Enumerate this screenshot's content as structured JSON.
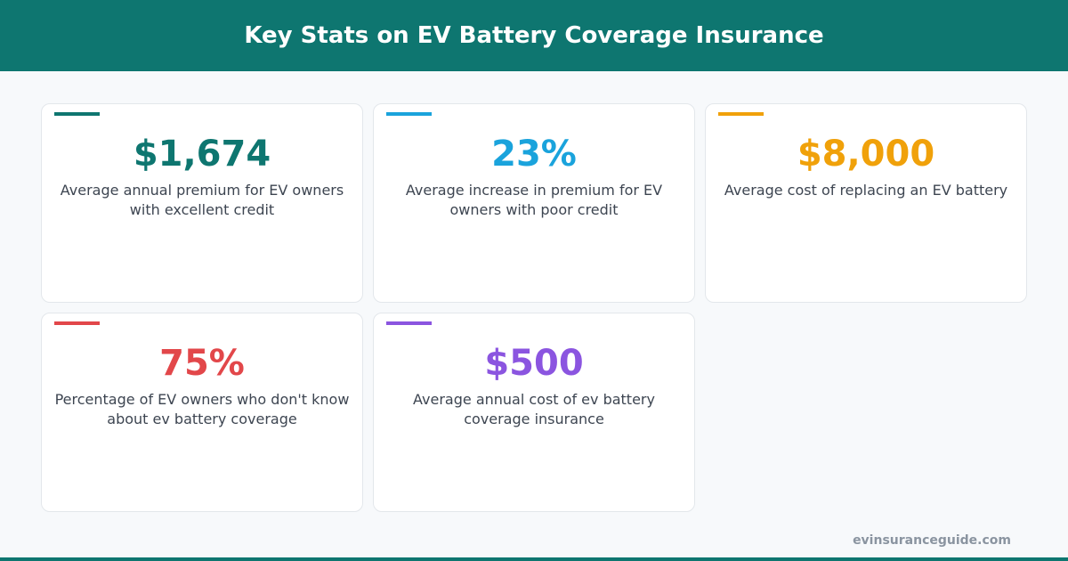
{
  "header": {
    "title": "Key Stats on EV Battery Coverage Insurance"
  },
  "cards": [
    {
      "value": "$1,674",
      "description": "Average annual premium for EV owners with excellent credit",
      "color": "#0e7670"
    },
    {
      "value": "23%",
      "description": "Average increase in premium for EV owners with poor credit",
      "color": "#1aa3dc"
    },
    {
      "value": "$8,000",
      "description": "Average cost of replacing an EV battery",
      "color": "#f0a10a"
    },
    {
      "value": "75%",
      "description": "Percentage of EV owners who don't know about ev battery coverage",
      "color": "#e2474a"
    },
    {
      "value": "$500",
      "description": "Average annual cost of ev battery coverage insurance",
      "color": "#8b55e0"
    }
  ],
  "footer": {
    "source": "evinsuranceguide.com"
  }
}
